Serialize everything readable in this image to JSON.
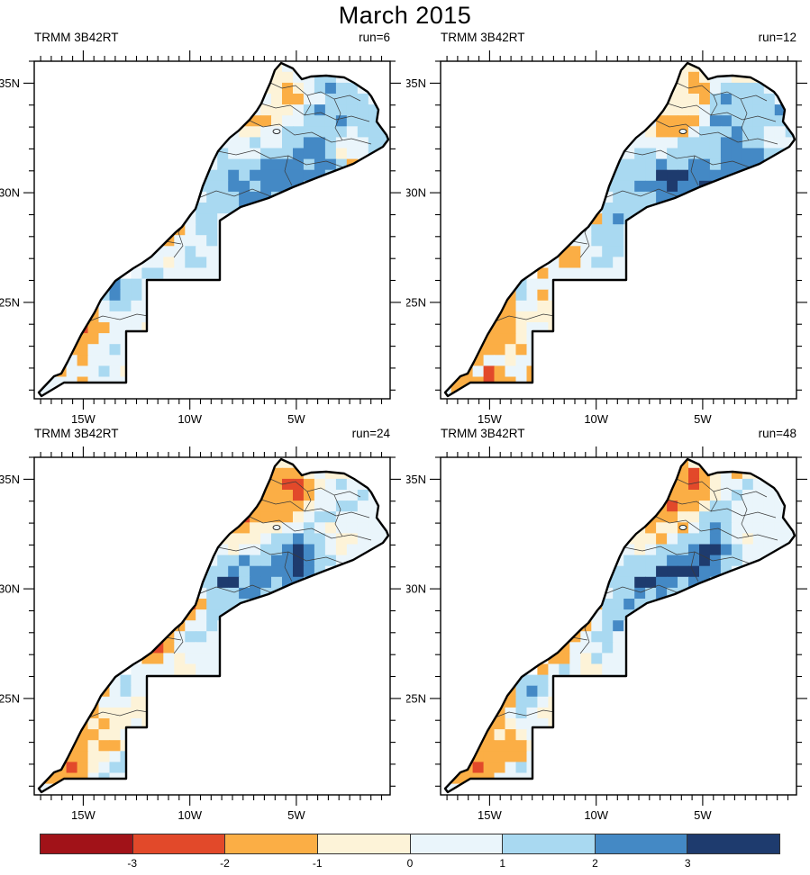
{
  "title": "March 2015",
  "axes": {
    "lat_labels": [
      "35N",
      "30N",
      "25N"
    ],
    "lat_values": [
      35,
      30,
      25
    ],
    "lon_labels": [
      "15W",
      "10W",
      "5W"
    ],
    "lon_values": [
      -15,
      -10,
      -5
    ]
  },
  "palette": {
    "A": "#a11218",
    "B": "#e2492a",
    "C": "#fbae45",
    "D": "#fdf3d8",
    "E": "#eaf5fb",
    "F": "#a9d9f1",
    "G": "#4489c5",
    "H": "#1e3b6e"
  },
  "chart_data": {
    "type": "heatmap",
    "title": "March 2015",
    "x_axis": {
      "tick_labels": [
        "15W",
        "10W",
        "5W"
      ],
      "range_deg_lon": [
        -17.3,
        -0.6
      ],
      "minor_tick_deg": 0.5
    },
    "y_axis": {
      "tick_labels": [
        "35N",
        "30N",
        "25N"
      ],
      "range_deg_lat": [
        20.6,
        36.0
      ],
      "minor_tick_deg": 1.0
    },
    "grid_shape": [
      31,
      33
    ],
    "cell_size_deg": 0.5,
    "legend_position": "bottom",
    "colorbar": {
      "boundary_labels": [
        "-3",
        "-2",
        "-1",
        "0",
        "1",
        "2",
        "3"
      ],
      "colors": [
        "#a11218",
        "#e2492a",
        "#fbae45",
        "#fdf3d8",
        "#eaf5fb",
        "#a9d9f1",
        "#4489c5",
        "#1e3b6e"
      ],
      "class_codes": "ABCDEFGH",
      "class_ranges": [
        "< -3",
        "-3 to -2",
        "-2 to -1",
        "-1 to 0",
        "0 to 1",
        "1 to 2",
        "2 to 3",
        "> 3"
      ]
    },
    "panels": [
      {
        "dataset": "TRMM 3B42RT",
        "run_label": "run=6",
        "grid": [
          "....................DDDEDEE......",
          "...................EDDDDEEFFEEEED",
          "...................DDDDCDEFGFFEDD",
          "...................EEEDCCEEFFFFED",
          "..................EEEDDDEFGFFFFFE",
          "..................ECCCDEEFFFGFFF.",
          ".................EEDDEEFFFFFFEFFF",
          "................EEEEFEEFFGGFEEEFF",
          "................EFEEEFFFGGGFDEEF.",
          "...............EEFFFFGGGGFGGFC...",
          "...............EFFGFGGGGGGGFF....",
          "..............EFFFGGFGGGGFF......",
          "..............EEFFFGGGFGF........",
          ".............EEFFFFG.............",
          ".............EEFFE...............",
          "............ECEFFE...............",
          "...........CCEEEFE...............",
          "...........EEEFEEE...............",
          "..........EEDEFFEE...............",
          ".........EFFEEEEEE...............",
          "......EGFFEEEEEEEE...............",
          ".....CFGFFE......................",
          ".....CEFFEE......................",
          "....ECEEEEE......................",
          "...CBCCEEED......................",
          "...CCCEEE........................",
          "...CCEEFE........................",
          "..EECEEEE........................",
          "..CEEEFED........................",
          ".EEECEEEE........................",
          "EEE.............................."
        ]
      },
      {
        "dataset": "TRMM 3B42RT",
        "run_label": "run=12",
        "grid": [
          "....................DDDDDEE......",
          "...................DDDDCDEEDDDEEE",
          "...................DDDDCCEFFFFEDD",
          "...................EEDDDCFGFFFFED",
          "..................EEDDDDEFFFFFFGE",
          "..................EECCCCEGGFFFFFF",
          ".................EEDCCCEFFFGFFEEF",
          "................EEEEEEFFFFGGFFEEE",
          "................EEFFEFFFFFGGGGFF.",
          "...............EFFFFGFFGGFGGGG...",
          "...............EFFFFHHHGGGGGG....",
          "..............EFFFGGGHGGHHG......",
          "..............EEFFFFGGGFG........",
          ".............EEFFFFF.............",
          ".............ECFGF...............",
          "............EEFFFE...............",
          "..........CCEEFFFE...............",
          "..........CCCEEFFE...............",
          "..........ECCEFFEE...............",
          ".........CEEEEEEEE...............",
          "......EFEEEDDEEEEE...............",
          ".....CCFECE......................",
          ".....CCEEDD......................",
          "....CCCDDDD......................",
          "...CCCCDEED......................",
          "...BCCCDE........................",
          "...CCCDCE........................",
          "..BCEEDEE........................",
          "..CEBCEEC........................",
          ".CCCBCCEC........................",
          "ECC.............................."
        ]
      },
      {
        "dataset": "TRMM 3B42RT",
        "run_label": "run=24",
        "grid": [
          "....................CCDDDEE......",
          "...................CCCCCCDEDDDEEE",
          "...................CCCCBBCDEFEEDD",
          "..................CCCCCCBCEEEEFED",
          "..................CBCCCCCDEEFFEEE",
          "..................CBCCCCDEFFEEEE.",
          ".................CCCDDDEEFEDEEEEE",
          "................EDDDDEFFGFFEDDEEE",
          "................EEDEEFFGHGFEDEEE.",
          "...............EEFFGFFGGHGFFEE...",
          "...............EFFGFGGGGHGFEE....",
          "..............EFFHHFGGFGGFE......",
          "..............EEFFFGGFFFE........",
          ".............EBCFFFF.............",
          ".............CCEFF...............",
          "............CCEEFE...............",
          "..........CCCEFFEE...............",
          "..........CBCEEEEE...............",
          "..........CCEDEEEE...............",
          ".........EEEEDDEEE...............",
          "......CEFEEEDDEEEE...............",
          ".....CCEFEE......................",
          ".....CEEEDD......................",
          "....CCDDDDD......................",
          "...CCDCDDED......................",
          "...CCCDDE........................",
          "...CCDCCD........................",
          "..CCCDDEF........................",
          "..CBCDEFF........................",
          ".CCCCEFEE........................",
          "EEC.............................."
        ]
      },
      {
        "dataset": "TRMM 3B42RT",
        "run_label": "run=48",
        "grid": [
          "....................DCCDDEE......",
          "...................CCCCBCDECDDCCE",
          "...................DCCCBCDEEFEECD",
          "..................DCCCCCCDEFEEEED",
          "..................CCCBCCDFFEEEEEE",
          "..................CCCCDDFFFEEEEE.",
          ".................CDCDDCEFGFEEEEEE",
          "................EDDDCEFFFGFEDEEEE",
          "................EEDEFFFGHHGFEEEE.",
          "...............EEFFFFGGGHGFFEE...",
          "...............EFFFFHHHHGGFEE....",
          "..............EFFFHHGGFGGFE......",
          "..............EEFFGFGFFFE........",
          ".............CCFFGFF.............",
          ".............CEFFF...............",
          "............BCEFGE...............",
          "..........CCCEFFEE...............",
          "..........CCEEEFEE...............",
          "..........CCEDFEEE...............",
          ".........CEFEDDEEE...............",
          "......CFFFEEDDEEEE...............",
          ".....CCFGFE......................",
          ".....CCFFED......................",
          "....CCEFEDD......................",
          "...CCCDEEED......................",
          "...CCDCDE........................",
          "...CCCCCD........................",
          "..CCCCCCE........................",
          "..CBCCEFE........................",
          ".CCCCEEEE........................",
          "EEC.............................."
        ]
      }
    ]
  }
}
